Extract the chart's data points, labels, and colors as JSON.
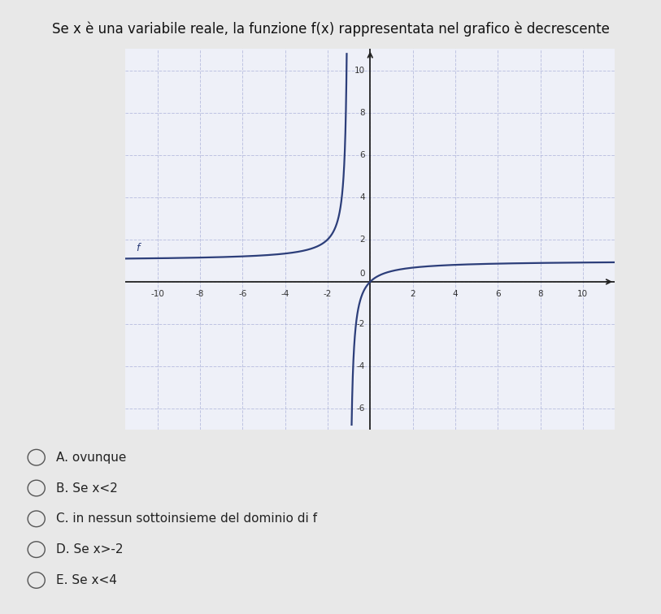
{
  "title": "Se x è una variabile reale, la funzione f(x) rappresentata nel grafico è decrescente",
  "title_fontsize": 12,
  "xlim": [
    -11.5,
    11.5
  ],
  "ylim": [
    -7,
    11
  ],
  "xticks": [
    -10,
    -8,
    -6,
    -4,
    -2,
    0,
    2,
    4,
    6,
    8,
    10
  ],
  "yticks": [
    -6,
    -4,
    -2,
    0,
    2,
    4,
    6,
    8,
    10
  ],
  "curve_color": "#2c3e7a",
  "curve_linewidth": 1.6,
  "grid_color": "#aab0d8",
  "grid_alpha": 0.7,
  "grid_linestyle": "--",
  "background_color": "#eef0f8",
  "axes_color": "#222222",
  "answer_options": [
    "A. ovunque",
    "B. Se x<2",
    "C. in nessun sottoinsieme del dominio di f",
    "D. Se x>-2",
    "E. Se x<4"
  ],
  "answer_fontsize": 11,
  "f_label": "f",
  "asymptote_x": -1,
  "func_scale": 1.0,
  "horizontal_asymptote": 1.0
}
